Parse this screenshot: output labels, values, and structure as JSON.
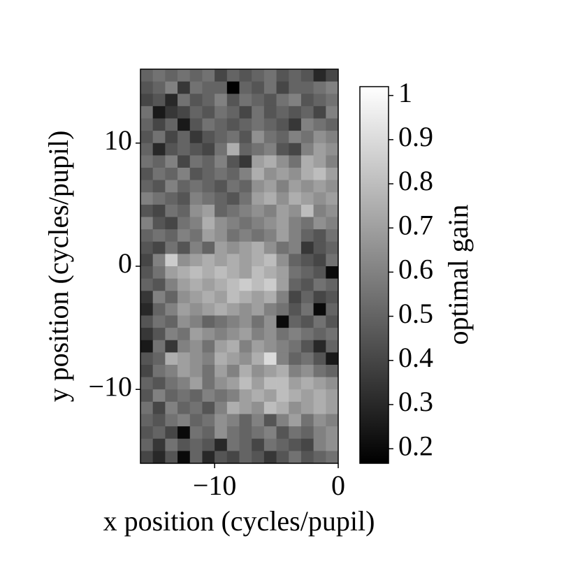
{
  "chart_data": {
    "type": "heatmap",
    "xlabel": "x position (cycles/pupil)",
    "ylabel": "y position (cycles/pupil)",
    "colorbar_label": "optimal gain",
    "colormap": "gray",
    "xlim": [
      -16,
      0
    ],
    "ylim": [
      -16,
      16
    ],
    "xticks": [
      {
        "value": -10,
        "label": "−10"
      },
      0
    ],
    "yticks": [
      {
        "value": -10,
        "label": "−10"
      },
      0,
      10
    ],
    "clim": [
      0.167,
      1.02
    ],
    "cticks": [
      0.2,
      0.3,
      0.4,
      0.5,
      0.6,
      0.7,
      0.8,
      0.9,
      1
    ],
    "z": [
      [
        0.5,
        0.55,
        0.5,
        0.55,
        0.5,
        0.55,
        0.4,
        0.5,
        0.45,
        0.5,
        0.55,
        0.45,
        0.5,
        0.45,
        0.3,
        0.4
      ],
      [
        0.45,
        0.5,
        0.6,
        0.35,
        0.55,
        0.5,
        0.5,
        0.17,
        0.5,
        0.45,
        0.55,
        0.4,
        0.5,
        0.5,
        0.55,
        0.6
      ],
      [
        0.4,
        0.45,
        0.3,
        0.55,
        0.45,
        0.5,
        0.6,
        0.45,
        0.55,
        0.5,
        0.45,
        0.55,
        0.6,
        0.45,
        0.5,
        0.55
      ],
      [
        0.55,
        0.25,
        0.35,
        0.4,
        0.5,
        0.45,
        0.55,
        0.5,
        0.4,
        0.55,
        0.45,
        0.5,
        0.45,
        0.5,
        0.4,
        0.6
      ],
      [
        0.5,
        0.4,
        0.5,
        0.25,
        0.45,
        0.55,
        0.5,
        0.45,
        0.5,
        0.55,
        0.5,
        0.45,
        0.35,
        0.6,
        0.55,
        0.5
      ],
      [
        0.45,
        0.55,
        0.4,
        0.5,
        0.35,
        0.45,
        0.5,
        0.55,
        0.45,
        0.65,
        0.55,
        0.5,
        0.6,
        0.55,
        0.65,
        0.6
      ],
      [
        0.5,
        0.3,
        0.45,
        0.5,
        0.45,
        0.4,
        0.55,
        0.75,
        0.5,
        0.55,
        0.6,
        0.45,
        0.4,
        0.6,
        0.7,
        0.65
      ],
      [
        0.55,
        0.5,
        0.6,
        0.4,
        0.55,
        0.5,
        0.6,
        0.45,
        0.35,
        0.7,
        0.75,
        0.65,
        0.55,
        0.75,
        0.7,
        0.6
      ],
      [
        0.45,
        0.55,
        0.5,
        0.6,
        0.45,
        0.5,
        0.55,
        0.5,
        0.6,
        0.75,
        0.65,
        0.7,
        0.65,
        0.75,
        0.8,
        0.7
      ],
      [
        0.5,
        0.45,
        0.6,
        0.5,
        0.55,
        0.5,
        0.45,
        0.55,
        0.5,
        0.65,
        0.7,
        0.6,
        0.7,
        0.65,
        0.7,
        0.65
      ],
      [
        0.6,
        0.55,
        0.5,
        0.45,
        0.6,
        0.55,
        0.5,
        0.45,
        0.55,
        0.7,
        0.75,
        0.65,
        0.75,
        0.7,
        0.65,
        0.7
      ],
      [
        0.45,
        0.4,
        0.55,
        0.5,
        0.65,
        0.7,
        0.5,
        0.55,
        0.6,
        0.65,
        0.6,
        0.7,
        0.65,
        0.8,
        0.6,
        0.65
      ],
      [
        0.6,
        0.45,
        0.4,
        0.55,
        0.6,
        0.75,
        0.65,
        0.6,
        0.55,
        0.6,
        0.65,
        0.7,
        0.6,
        0.55,
        0.65,
        0.6
      ],
      [
        0.5,
        0.55,
        0.5,
        0.6,
        0.55,
        0.7,
        0.65,
        0.55,
        0.6,
        0.55,
        0.6,
        0.7,
        0.6,
        0.5,
        0.45,
        0.55
      ],
      [
        0.45,
        0.4,
        0.55,
        0.45,
        0.6,
        0.5,
        0.7,
        0.65,
        0.7,
        0.75,
        0.65,
        0.55,
        0.6,
        0.35,
        0.45,
        0.5
      ],
      [
        0.4,
        0.6,
        0.85,
        0.65,
        0.7,
        0.75,
        0.7,
        0.75,
        0.7,
        0.75,
        0.8,
        0.65,
        0.5,
        0.45,
        0.4,
        0.55
      ],
      [
        0.45,
        0.55,
        0.7,
        0.75,
        0.8,
        0.75,
        0.8,
        0.75,
        0.7,
        0.8,
        0.75,
        0.7,
        0.55,
        0.5,
        0.45,
        0.2
      ],
      [
        0.5,
        0.45,
        0.6,
        0.7,
        0.75,
        0.7,
        0.75,
        0.8,
        0.85,
        0.8,
        0.85,
        0.7,
        0.5,
        0.45,
        0.55,
        0.5
      ],
      [
        0.35,
        0.6,
        0.5,
        0.65,
        0.7,
        0.75,
        0.7,
        0.8,
        0.75,
        0.7,
        0.75,
        0.6,
        0.4,
        0.5,
        0.4,
        0.45
      ],
      [
        0.3,
        0.5,
        0.6,
        0.7,
        0.65,
        0.7,
        0.75,
        0.7,
        0.65,
        0.7,
        0.6,
        0.55,
        0.45,
        0.55,
        0.2,
        0.5
      ],
      [
        0.45,
        0.55,
        0.5,
        0.65,
        0.6,
        0.5,
        0.55,
        0.6,
        0.65,
        0.55,
        0.65,
        0.2,
        0.5,
        0.45,
        0.55,
        0.45
      ],
      [
        0.35,
        0.45,
        0.6,
        0.55,
        0.7,
        0.65,
        0.6,
        0.65,
        0.7,
        0.6,
        0.65,
        0.55,
        0.6,
        0.55,
        0.5,
        0.55
      ],
      [
        0.25,
        0.55,
        0.35,
        0.6,
        0.65,
        0.55,
        0.7,
        0.75,
        0.6,
        0.7,
        0.65,
        0.6,
        0.55,
        0.45,
        0.3,
        0.5
      ],
      [
        0.45,
        0.5,
        0.75,
        0.7,
        0.65,
        0.6,
        0.75,
        0.7,
        0.65,
        0.75,
        0.9,
        0.6,
        0.5,
        0.55,
        0.45,
        0.25
      ],
      [
        0.4,
        0.55,
        0.6,
        0.7,
        0.65,
        0.55,
        0.7,
        0.6,
        0.75,
        0.65,
        0.7,
        0.75,
        0.6,
        0.65,
        0.55,
        0.5
      ],
      [
        0.5,
        0.45,
        0.55,
        0.6,
        0.7,
        0.55,
        0.65,
        0.7,
        0.8,
        0.7,
        0.8,
        0.8,
        0.7,
        0.75,
        0.7,
        0.65
      ],
      [
        0.45,
        0.6,
        0.5,
        0.55,
        0.5,
        0.6,
        0.55,
        0.6,
        0.7,
        0.75,
        0.7,
        0.8,
        0.75,
        0.7,
        0.75,
        0.7
      ],
      [
        0.55,
        0.4,
        0.6,
        0.5,
        0.55,
        0.45,
        0.6,
        0.75,
        0.7,
        0.65,
        0.8,
        0.75,
        0.65,
        0.7,
        0.75,
        0.7
      ],
      [
        0.5,
        0.45,
        0.55,
        0.6,
        0.5,
        0.55,
        0.65,
        0.6,
        0.5,
        0.6,
        0.45,
        0.6,
        0.7,
        0.55,
        0.65,
        0.6
      ],
      [
        0.45,
        0.5,
        0.4,
        0.2,
        0.55,
        0.5,
        0.65,
        0.55,
        0.5,
        0.55,
        0.6,
        0.45,
        0.55,
        0.5,
        0.6,
        0.65
      ],
      [
        0.5,
        0.35,
        0.55,
        0.45,
        0.5,
        0.45,
        0.3,
        0.55,
        0.5,
        0.4,
        0.55,
        0.5,
        0.45,
        0.4,
        0.6,
        0.65
      ],
      [
        0.4,
        0.3,
        0.45,
        0.2,
        0.5,
        0.3,
        0.45,
        0.4,
        0.5,
        0.45,
        0.35,
        0.45,
        0.55,
        0.45,
        0.5,
        0.55
      ]
    ]
  }
}
